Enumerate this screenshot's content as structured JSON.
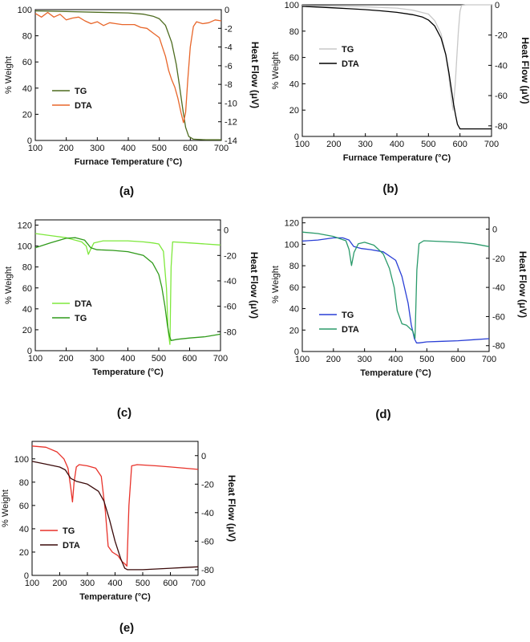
{
  "chart_data": [
    {
      "panel": "a",
      "type": "line",
      "caption": "(a)",
      "xlabel": "Furnace Temperature (°C)",
      "ylabel_left": "% Weight",
      "ylabel_right": "Heat Flow (μV)",
      "xlim": [
        100,
        700
      ],
      "ylim_left": [
        0,
        100
      ],
      "ylim_right": [
        -14,
        0
      ],
      "x_ticks": [
        100,
        200,
        300,
        400,
        500,
        600,
        700
      ],
      "y_ticks_left": [
        0,
        20,
        40,
        60,
        80,
        100
      ],
      "y_ticks_right": [
        0,
        -2,
        -4,
        -6,
        -8,
        -10,
        -12,
        -14
      ],
      "legend_position": "middle-left",
      "series": [
        {
          "name": "TG",
          "axis": "left",
          "color": "#4d6b1f",
          "x": [
            100,
            200,
            300,
            400,
            450,
            480,
            500,
            520,
            540,
            555,
            565,
            575,
            585,
            595,
            610,
            650,
            700
          ],
          "y": [
            99,
            98.5,
            98,
            97.5,
            96.5,
            95,
            93,
            88,
            75,
            58,
            42,
            25,
            10,
            3,
            1,
            0.5,
            0.5
          ]
        },
        {
          "name": "DTA",
          "axis": "right",
          "color": "#e8662a",
          "x": [
            100,
            120,
            140,
            160,
            180,
            200,
            220,
            240,
            260,
            280,
            300,
            320,
            340,
            360,
            380,
            400,
            420,
            440,
            460,
            480,
            500,
            510,
            520,
            530,
            540,
            550,
            560,
            570,
            578,
            585,
            592,
            600,
            610,
            620,
            640,
            660,
            680,
            700
          ],
          "y": [
            -0.4,
            -0.8,
            -0.3,
            -0.8,
            -0.5,
            -1.1,
            -0.9,
            -0.8,
            -1.2,
            -1.5,
            -1.3,
            -1.7,
            -1.4,
            -1.5,
            -1.6,
            -1.6,
            -1.6,
            -1.9,
            -2.0,
            -2.5,
            -3.0,
            -4.0,
            -5.0,
            -6.5,
            -7.5,
            -8.3,
            -9.5,
            -11.0,
            -12.1,
            -11.0,
            -7.5,
            -4.0,
            -1.8,
            -1.3,
            -1.5,
            -1.4,
            -1.1,
            -1.2
          ]
        }
      ]
    },
    {
      "panel": "b",
      "type": "line",
      "caption": "(b)",
      "xlabel": "Furnace Temperature (°C)",
      "ylabel_left": "% Weight",
      "ylabel_right": "Heat Flow (μV)",
      "xlim": [
        100,
        700
      ],
      "ylim_left": [
        0,
        100
      ],
      "ylim_right": [
        -87,
        0
      ],
      "x_ticks": [
        100,
        200,
        300,
        400,
        500,
        600,
        700
      ],
      "y_ticks_left": [
        0,
        20,
        40,
        60,
        80,
        100
      ],
      "y_ticks_right": [
        0,
        -20,
        -40,
        -60,
        -80
      ],
      "legend_position": "top-left",
      "series": [
        {
          "name": "TG",
          "axis": "left",
          "color": "#c8c8c8",
          "x": [
            100,
            200,
            300,
            400,
            450,
            500,
            520,
            540,
            555,
            565,
            572,
            578,
            585,
            590,
            595,
            600,
            605,
            620,
            650,
            700
          ],
          "y": [
            99.5,
            99,
            98.5,
            97.5,
            96,
            93,
            88,
            78,
            62,
            45,
            30,
            20,
            40,
            60,
            80,
            95,
            99.5,
            100,
            100,
            100
          ]
        },
        {
          "name": "DTA",
          "axis": "right",
          "color": "#000000",
          "x": [
            100,
            150,
            200,
            250,
            300,
            350,
            400,
            450,
            480,
            500,
            520,
            540,
            555,
            565,
            572,
            580,
            586,
            592,
            600,
            650,
            700
          ],
          "y": [
            -1,
            -1.5,
            -2,
            -2.6,
            -3.2,
            -4,
            -5,
            -6.5,
            -8,
            -10,
            -14,
            -22,
            -33,
            -45,
            -55,
            -66,
            -73,
            -79,
            -82,
            -82,
            -82
          ]
        }
      ]
    },
    {
      "panel": "c",
      "type": "line",
      "caption": "(c)",
      "xlabel": "Temperature (°C)",
      "ylabel_left": "% Weight",
      "ylabel_right": "Heat Flow (μV)",
      "xlim": [
        100,
        700
      ],
      "ylim_left": [
        0,
        125
      ],
      "ylim_right": [
        -95,
        8
      ],
      "x_ticks": [
        100,
        200,
        300,
        400,
        500,
        600,
        700
      ],
      "y_ticks_left": [
        0,
        20,
        40,
        60,
        80,
        100,
        120
      ],
      "y_ticks_right": [
        0,
        -20,
        -40,
        -60,
        -80
      ],
      "legend_position": "bottom-left",
      "series": [
        {
          "name": "DTA",
          "axis": "left",
          "color": "#7ee83c",
          "x": [
            100,
            150,
            200,
            250,
            265,
            272,
            278,
            290,
            320,
            400,
            450,
            480,
            500,
            515,
            525,
            530,
            536,
            540,
            545,
            600,
            650,
            700
          ],
          "y": [
            112,
            110,
            108,
            104,
            100,
            92,
            96,
            103,
            105,
            105,
            104,
            103,
            102,
            95,
            60,
            20,
            6,
            80,
            104,
            103,
            102,
            101
          ]
        },
        {
          "name": "TG",
          "axis": "right",
          "color": "#2f9a1a",
          "x": [
            100,
            150,
            200,
            230,
            260,
            280,
            300,
            350,
            400,
            450,
            480,
            500,
            510,
            520,
            528,
            534,
            540,
            560,
            600,
            650,
            700
          ],
          "y": [
            -14,
            -10,
            -6.5,
            -6,
            -8,
            -14,
            -15.5,
            -16,
            -17,
            -20,
            -26,
            -35,
            -45,
            -60,
            -75,
            -83,
            -87,
            -86,
            -85,
            -84,
            -82
          ]
        }
      ]
    },
    {
      "panel": "d",
      "type": "line",
      "caption": "(d)",
      "xlabel": "Temperature (°C)",
      "ylabel_left": "% Weight",
      "ylabel_right": "Heat Flow (μV)",
      "xlim": [
        100,
        700
      ],
      "ylim_left": [
        0,
        125
      ],
      "ylim_right": [
        -84,
        8
      ],
      "x_ticks": [
        100,
        200,
        300,
        400,
        500,
        600,
        700
      ],
      "y_ticks_left": [
        0,
        20,
        40,
        60,
        80,
        100,
        120
      ],
      "y_ticks_right": [
        0,
        -20,
        -40,
        -60,
        -80
      ],
      "legend_position": "bottom-left",
      "series": [
        {
          "name": "TG",
          "axis": "left",
          "color": "#2a3fd6",
          "x": [
            100,
            150,
            200,
            230,
            250,
            265,
            290,
            320,
            360,
            400,
            420,
            440,
            450,
            460,
            467,
            475,
            500,
            550,
            600,
            650,
            700
          ],
          "y": [
            103,
            104,
            106,
            106,
            104,
            98,
            96,
            95,
            93,
            85,
            70,
            45,
            25,
            12,
            8,
            8,
            9,
            9.5,
            10,
            11,
            12
          ]
        },
        {
          "name": "DTA",
          "axis": "right",
          "color": "#2a9a6a",
          "x": [
            100,
            150,
            200,
            240,
            250,
            258,
            266,
            280,
            300,
            330,
            360,
            380,
            395,
            405,
            420,
            435,
            445,
            455,
            462,
            468,
            475,
            490,
            550,
            600,
            650,
            700
          ],
          "y": [
            -2,
            -3,
            -5,
            -8,
            -14,
            -25,
            -16,
            -10,
            -9,
            -11,
            -17,
            -27,
            -40,
            -56,
            -65,
            -66,
            -68,
            -70,
            -75,
            -28,
            -10,
            -8,
            -8.5,
            -9,
            -10,
            -12
          ]
        }
      ]
    },
    {
      "panel": "e",
      "type": "line",
      "caption": "(e)",
      "xlabel": "Temperature (°C)",
      "ylabel_left": "% Weight",
      "ylabel_right": "Heat Flow (μV)",
      "xlim": [
        100,
        700
      ],
      "ylim_left": [
        0,
        115
      ],
      "ylim_right": [
        -84,
        10
      ],
      "x_ticks": [
        100,
        200,
        300,
        400,
        500,
        600,
        700
      ],
      "y_ticks_left": [
        0,
        20,
        40,
        60,
        80,
        100
      ],
      "y_ticks_right": [
        0,
        -20,
        -40,
        -60,
        -80
      ],
      "legend_position": "bottom-left",
      "series": [
        {
          "name": "TG",
          "axis": "left",
          "color": "#e8322a",
          "x": [
            100,
            150,
            190,
            215,
            230,
            240,
            246,
            252,
            260,
            270,
            300,
            330,
            350,
            365,
            375,
            390,
            410,
            425,
            435,
            443,
            450,
            460,
            480,
            550,
            600,
            650,
            700
          ],
          "y": [
            111,
            110,
            106,
            100,
            92,
            75,
            63,
            80,
            93,
            95,
            94,
            92,
            85,
            55,
            25,
            20,
            17,
            12,
            10,
            8,
            60,
            94,
            95,
            94,
            93,
            92,
            91
          ]
        },
        {
          "name": "DTA",
          "axis": "right",
          "color": "#3a0a0a",
          "x": [
            100,
            150,
            200,
            220,
            240,
            260,
            300,
            340,
            360,
            380,
            400,
            420,
            435,
            445,
            460,
            500,
            550,
            600,
            650,
            700
          ],
          "y": [
            -4,
            -6,
            -8,
            -10,
            -16,
            -18,
            -20,
            -25,
            -32,
            -45,
            -60,
            -72,
            -79,
            -80,
            -80,
            -80,
            -79.5,
            -79,
            -78.5,
            -78
          ]
        }
      ]
    }
  ]
}
